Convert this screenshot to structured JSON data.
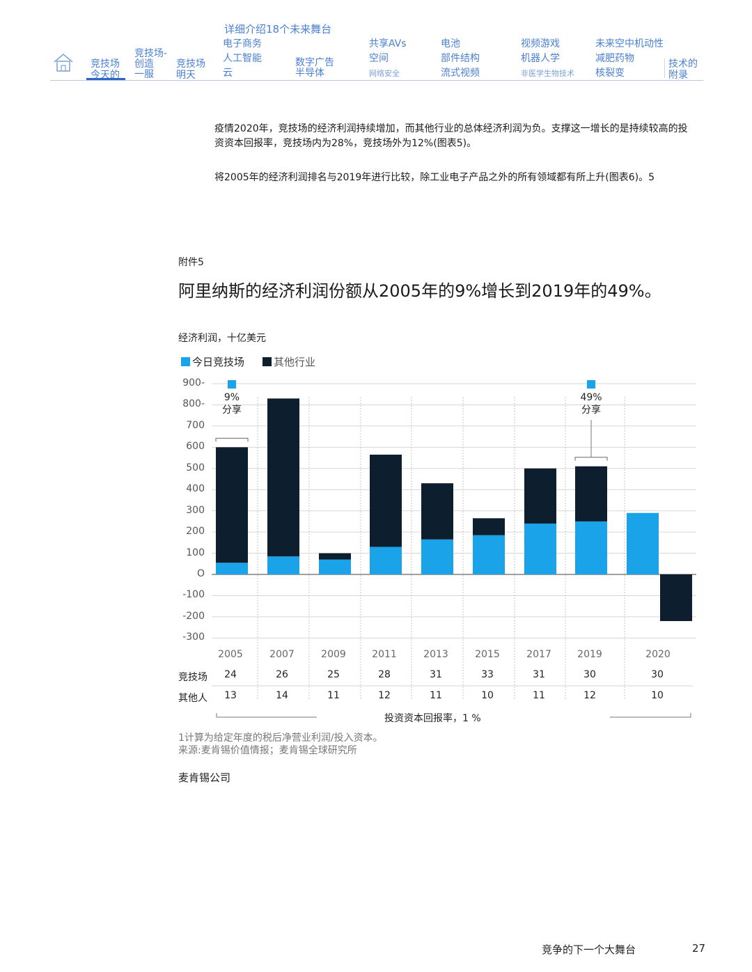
{
  "nav": {
    "home_icon": "home-icon",
    "items": [
      {
        "label": "竞技场\n今天的"
      },
      {
        "label": "竞技场-\n创造\n一服"
      },
      {
        "label": "竞技场\n明天"
      }
    ],
    "section_header": "详细介绍18个未来舞台",
    "groups": [
      {
        "lines": [
          "电子商务",
          "人工智能",
          "云"
        ]
      },
      {
        "lines": [
          "数字广告",
          "半导体"
        ]
      },
      {
        "lines": [
          "共享AVs",
          "空间",
          "网络安全"
        ]
      },
      {
        "lines": [
          "电池",
          "部件结构",
          "流式视频"
        ]
      },
      {
        "lines": [
          "视频游戏",
          "机器人学",
          "非医学生物技术"
        ]
      },
      {
        "lines": [
          "未来空中机动性",
          "减肥药物",
          "核裂变"
        ]
      }
    ],
    "appendix": "技术的\n附录"
  },
  "body": {
    "para1": "疫情2020年，竞技场的经济利润持续增加，而其他行业的总体经济利润为负。支撑这一增长的是持续较高的投资资本回报率，竞技场内为28%，竞技场外为12%(图表5)。",
    "para2": "将2005年的经济利润排名与2019年进行比较，除工业电子产品之外的所有领域都有所上升(图表6)。5"
  },
  "exhibit_label": "附件5",
  "chart_data": {
    "type": "bar",
    "stacked": true,
    "title": "阿里纳斯的经济利润份额从2005年的9%增长到2019年的49%。",
    "ylabel": "经济利润，十亿美元",
    "ylim": [
      -300,
      900
    ],
    "yticks": [
      "900-",
      "800-",
      "700",
      "600",
      "500",
      "400",
      "300",
      "200",
      "100",
      "O",
      "-100",
      "-200",
      "-300"
    ],
    "ytick_values": [
      900,
      800,
      700,
      600,
      500,
      400,
      300,
      200,
      100,
      0,
      -100,
      -200,
      -300
    ],
    "categories": [
      "2005",
      "2007",
      "2009",
      "2011",
      "2013",
      "2015",
      "2017",
      "2019",
      "2020"
    ],
    "series": [
      {
        "name": "今日竞技场",
        "color": "#1aa3e8",
        "values": [
          55,
          85,
          70,
          130,
          165,
          185,
          240,
          250,
          290
        ]
      },
      {
        "name": "其他行业",
        "color": "#0d1e2e",
        "values": [
          545,
          745,
          30,
          435,
          265,
          80,
          260,
          260,
          -220
        ]
      }
    ],
    "annotations": [
      {
        "category": "2005",
        "pct": "9%",
        "label": "分享"
      },
      {
        "category": "2019",
        "pct": "49%",
        "label": "分享"
      }
    ],
    "grid": true,
    "legend_position": "top-left",
    "roic_table": {
      "rows": [
        {
          "label": "竞技场",
          "values": [
            "24",
            "26",
            "25",
            "28",
            "31",
            "33",
            "31",
            "30",
            "30"
          ]
        },
        {
          "label": "其他人",
          "values": [
            "13",
            "14",
            "11",
            "12",
            "11",
            "10",
            "11",
            "12",
            "10"
          ]
        }
      ],
      "caption": "投资资本回报率，1 %"
    }
  },
  "footnotes": {
    "note1": "1计算为给定年度的税后净营业利润/投入资本。",
    "source": "来源:麦肯锡价值情报；麦肯锡全球研究所"
  },
  "company": "麦肯锡公司",
  "footer": {
    "title": "竞争的下一个大舞台",
    "page": "27"
  }
}
